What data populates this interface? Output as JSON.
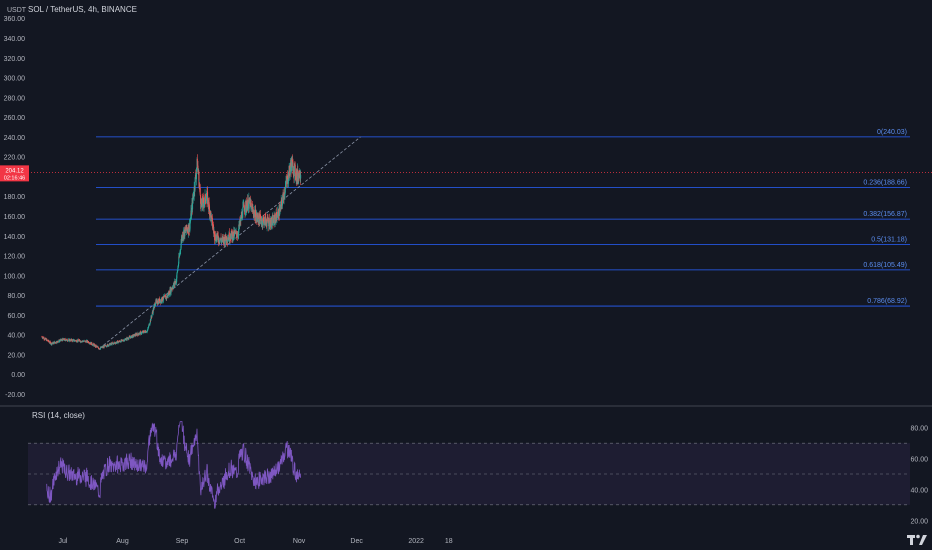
{
  "header": {
    "symbol_line": "SOL / TetherUS, 4h, BINANCE"
  },
  "price_axis": {
    "unit": "USDT"
  },
  "price_badge": {
    "line1": "204.12",
    "line2": "02:16:46",
    "color": "#f23645"
  },
  "rsi": {
    "label": "RSI (14, close)",
    "ticks": [
      "80.00",
      "60.00",
      "40.00",
      "20.00"
    ],
    "upper": 70,
    "middle": 50,
    "lower": 30,
    "line_color": "#7e57c2"
  },
  "time_axis": {
    "labels": [
      "Jul",
      "Aug",
      "Sep",
      "Oct",
      "Nov",
      "Dec",
      "2022",
      "18"
    ]
  },
  "colors": {
    "background": "#131722",
    "up": "#26a69a",
    "down": "#ef5350",
    "fib": "#2962ff",
    "trendline": "#8a93a6"
  },
  "chart_data": {
    "type": "candlestick",
    "title": "SOL / TetherUS, 4h, BINANCE",
    "ylabel": "USDT",
    "y_ticks": [
      360,
      340,
      320,
      300,
      280,
      260,
      240,
      220,
      200,
      180,
      160,
      140,
      120,
      100,
      80,
      60,
      40,
      20,
      0,
      -20
    ],
    "ylim": [
      -27,
      367
    ],
    "x_labels": [
      "Jul",
      "Aug",
      "Sep",
      "Oct",
      "Nov",
      "Dec",
      "2022",
      "18"
    ],
    "price_path": [
      [
        "2021-06-20",
        38
      ],
      [
        "2021-06-25",
        31
      ],
      [
        "2021-07-01",
        35
      ],
      [
        "2021-07-08",
        34
      ],
      [
        "2021-07-14",
        33
      ],
      [
        "2021-07-20",
        26
      ],
      [
        "2021-07-25",
        30
      ],
      [
        "2021-08-01",
        34
      ],
      [
        "2021-08-08",
        40
      ],
      [
        "2021-08-14",
        44
      ],
      [
        "2021-08-18",
        72
      ],
      [
        "2021-08-24",
        78
      ],
      [
        "2021-08-29",
        95
      ],
      [
        "2021-09-01",
        140
      ],
      [
        "2021-09-05",
        150
      ],
      [
        "2021-09-09",
        214
      ],
      [
        "2021-09-11",
        170
      ],
      [
        "2021-09-14",
        180
      ],
      [
        "2021-09-18",
        140
      ],
      [
        "2021-09-22",
        135
      ],
      [
        "2021-09-26",
        140
      ],
      [
        "2021-09-30",
        142
      ],
      [
        "2021-10-03",
        168
      ],
      [
        "2021-10-06",
        173
      ],
      [
        "2021-10-10",
        158
      ],
      [
        "2021-10-14",
        155
      ],
      [
        "2021-10-18",
        153
      ],
      [
        "2021-10-22",
        165
      ],
      [
        "2021-10-25",
        190
      ],
      [
        "2021-10-28",
        213
      ],
      [
        "2021-10-31",
        200
      ],
      [
        "2021-11-02",
        206
      ]
    ],
    "last_price": 204.12,
    "fibonacci": [
      {
        "label": "0(240.03)",
        "price": 240.03
      },
      {
        "label": "0.236(188.66)",
        "price": 188.66
      },
      {
        "label": "0.382(156.87)",
        "price": 156.87
      },
      {
        "label": "0.5(131.18)",
        "price": 131.18
      },
      {
        "label": "0.618(105.49)",
        "price": 105.49
      },
      {
        "label": "0.786(68.92)",
        "price": 68.92
      }
    ],
    "trendline": [
      [
        "2021-07-20",
        26
      ],
      [
        "2021-12-03",
        240
      ]
    ],
    "rsi": {
      "range": [
        20,
        80
      ],
      "upper": 70,
      "middle": 50,
      "lower": 30
    },
    "grid": false
  }
}
